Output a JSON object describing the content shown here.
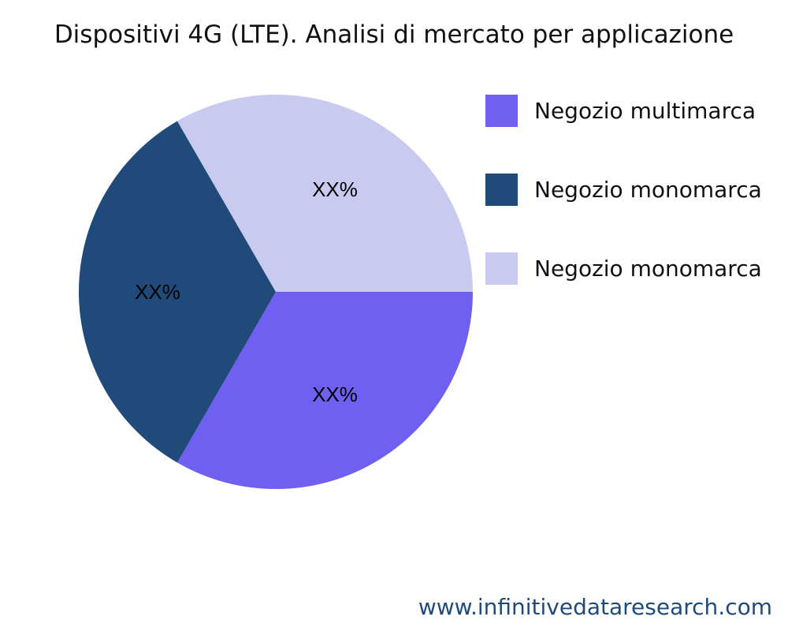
{
  "chart_data": {
    "type": "pie",
    "title": "Dispositivi 4G (LTE). Analisi di mercato per applicazione",
    "series": [
      {
        "name": "Negozio multimarca",
        "value": 33.33,
        "label": "XX%",
        "color": "#6f60f2"
      },
      {
        "name": "Negozio monomarca",
        "value": 33.33,
        "label": "XX%",
        "color": "#1f4a7a"
      },
      {
        "name": "Negozio monomarca",
        "value": 33.33,
        "label": "XX%",
        "color": "#c9caf0"
      }
    ],
    "legend_position": "right"
  },
  "footer": {
    "url": "www.infinitivedataresearch.com"
  }
}
